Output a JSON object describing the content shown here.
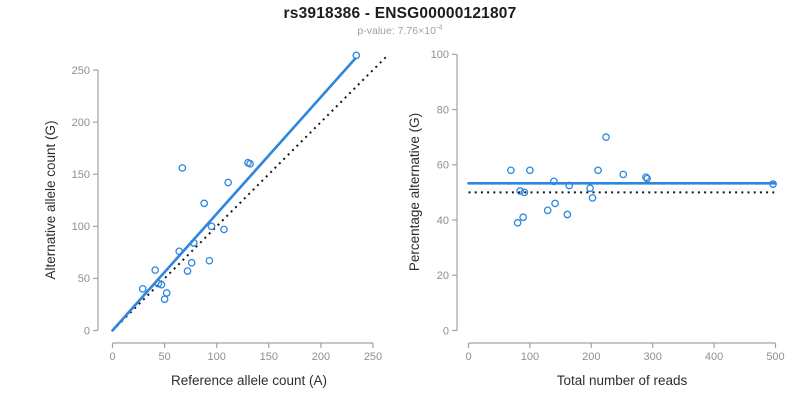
{
  "header": {
    "title": "rs3918386 - ENSG00000121807",
    "p_value_label": "p-value: ",
    "p_value_mantissa": "7.76",
    "p_value_times": "×",
    "p_value_base": "10",
    "p_value_exponent": "-4"
  },
  "colors": {
    "accent_blue": "#2e86de",
    "dotted_black": "#151515",
    "axis_gray": "#a3a3a3",
    "tick_text_gray": "#8f8f8f",
    "axis_title_color": "#2e2e2e",
    "title_color": "#1c1c1c",
    "subtitle_gray": "#a0a0a0",
    "background": "#ffffff"
  },
  "chart_data": [
    {
      "type": "scatter",
      "panel": "left",
      "title": "",
      "xlabel": "Reference allele count (A)",
      "ylabel": "Alternative allele count (G)",
      "xlim": [
        0,
        250
      ],
      "ylim": [
        0,
        250
      ],
      "xticks": [
        0,
        50,
        100,
        150,
        200,
        250
      ],
      "yticks": [
        0,
        50,
        100,
        150,
        200,
        250
      ],
      "grid": false,
      "legend": "none",
      "marker": "open-circle",
      "points": [
        [
          29,
          40
        ],
        [
          41,
          58
        ],
        [
          44,
          45
        ],
        [
          47,
          44
        ],
        [
          50,
          30
        ],
        [
          52,
          36
        ],
        [
          64,
          76
        ],
        [
          67,
          156
        ],
        [
          72,
          57
        ],
        [
          76,
          65
        ],
        [
          78,
          84
        ],
        [
          88,
          122
        ],
        [
          93,
          67
        ],
        [
          95,
          100
        ],
        [
          107,
          97
        ],
        [
          111,
          142
        ],
        [
          130,
          161
        ],
        [
          132,
          160
        ],
        [
          234,
          264
        ]
      ],
      "lines": [
        {
          "name": "identity-line",
          "style": "dotted",
          "color": "black",
          "x1": 0,
          "y1": 0,
          "x2": 264,
          "y2": 264
        },
        {
          "name": "regression-line",
          "style": "solid",
          "color": "blue",
          "x1": 0,
          "y1": 0,
          "x2": 233,
          "y2": 261
        }
      ]
    },
    {
      "type": "scatter",
      "panel": "right",
      "title": "",
      "xlabel": "Total number of reads",
      "ylabel": "Percentage alternative (G)",
      "xlim": [
        0,
        500
      ],
      "ylim": [
        0,
        100
      ],
      "xticks": [
        0,
        100,
        200,
        300,
        400,
        500
      ],
      "yticks": [
        0,
        20,
        40,
        60,
        80,
        100
      ],
      "grid": false,
      "legend": "none",
      "marker": "open-circle",
      "points": [
        [
          69,
          58
        ],
        [
          80,
          39
        ],
        [
          84,
          50.5
        ],
        [
          89,
          41
        ],
        [
          91,
          50
        ],
        [
          100,
          58
        ],
        [
          129,
          43.5
        ],
        [
          139,
          54
        ],
        [
          141,
          46
        ],
        [
          161,
          42
        ],
        [
          164,
          52.5
        ],
        [
          198,
          51.5
        ],
        [
          202,
          48
        ],
        [
          211,
          58
        ],
        [
          224,
          70
        ],
        [
          252,
          56.5
        ],
        [
          289,
          55.5
        ],
        [
          291,
          55
        ],
        [
          496,
          53
        ]
      ],
      "lines": [
        {
          "name": "null-50-percent-line",
          "style": "dotted",
          "color": "black",
          "x1": 0,
          "y1": 50,
          "x2": 500,
          "y2": 50
        },
        {
          "name": "mean-percentage-line",
          "style": "solid",
          "color": "blue",
          "x1": 0,
          "y1": 53.3,
          "x2": 500,
          "y2": 53.3
        }
      ]
    }
  ]
}
